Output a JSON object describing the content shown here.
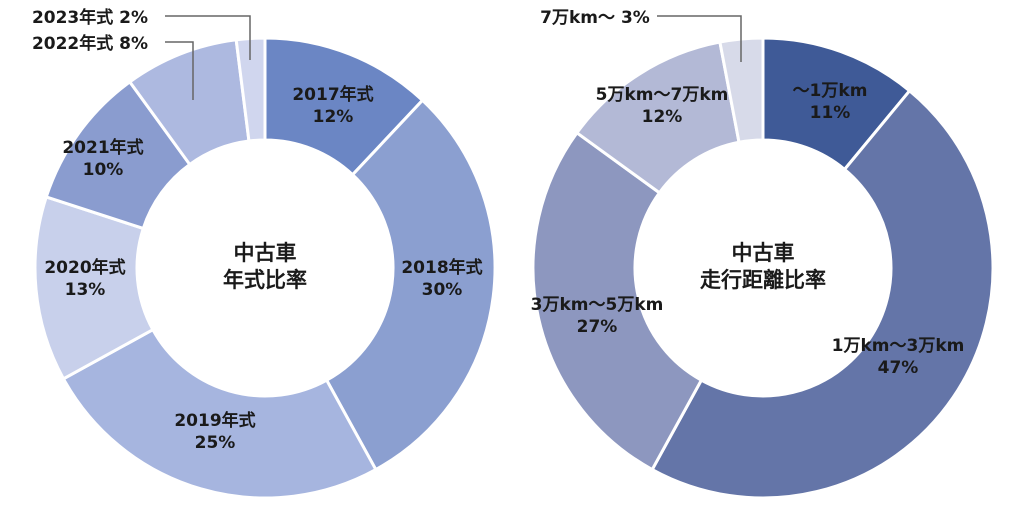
{
  "chart_data": [
    {
      "type": "pie",
      "center_lines": [
        "中古車",
        "年式比率"
      ],
      "categories": [
        "2017年式",
        "2018年式",
        "2019年式",
        "2020年式",
        "2021年式",
        "2022年式",
        "2023年式"
      ],
      "values": [
        12,
        30,
        25,
        13,
        10,
        8,
        2
      ],
      "value_labels": [
        "12%",
        "30%",
        "25%",
        "13%",
        "10%",
        "8%",
        "2%"
      ],
      "colors": [
        "#6b86c4",
        "#8b9fd0",
        "#a6b5df",
        "#c8d0eb",
        "#8a9ccf",
        "#adb9e0",
        "#d0d6ee"
      ]
    },
    {
      "type": "pie",
      "center_lines": [
        "中古車",
        "走行距離比率"
      ],
      "categories": [
        "〜1万km",
        "1万km〜3万km",
        "3万km〜5万km",
        "5万km〜7万km",
        "7万km〜"
      ],
      "values": [
        11,
        47,
        27,
        12,
        3
      ],
      "value_labels": [
        "11%",
        "47%",
        "27%",
        "12%",
        "3%"
      ],
      "colors": [
        "#3f5a97",
        "#6475a8",
        "#8d97bf",
        "#b3b9d6",
        "#d7dae9"
      ]
    }
  ]
}
